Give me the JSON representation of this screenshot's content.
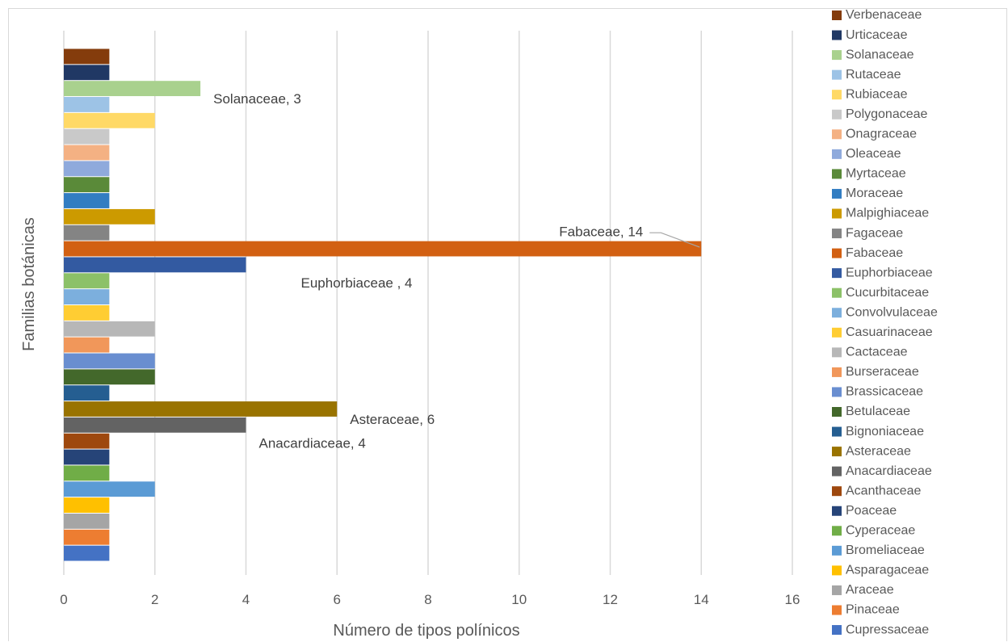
{
  "chart_data": {
    "type": "bar",
    "orientation": "horizontal",
    "xlabel": "Número de tipos polínicos",
    "ylabel": "Familias botánicas",
    "xlim": [
      0,
      16
    ],
    "xticks": [
      0,
      2,
      4,
      6,
      8,
      10,
      12,
      14,
      16
    ],
    "grid": "vertical",
    "legend_position": "right",
    "categories": [
      "Cupressaceae",
      "Pinaceae",
      "Araceae",
      "Asparagaceae",
      "Bromeliaceae",
      "Cyperaceae",
      "Poaceae",
      "Acanthaceae",
      "Anacardiaceae",
      "Asteraceae",
      "Bignoniaceae",
      "Betulaceae",
      "Brassicaceae",
      "Burseraceae",
      "Cactaceae",
      "Casuarinaceae",
      "Convolvulaceae",
      "Cucurbitaceae",
      "Euphorbiaceae",
      "Fabaceae",
      "Fagaceae",
      "Malpighiaceae",
      "Moraceae",
      "Myrtaceae",
      "Oleaceae",
      "Onagraceae",
      "Polygonaceae",
      "Rubiaceae",
      "Rutaceae",
      "Solanaceae",
      "Urticaceae",
      "Verbenaceae"
    ],
    "values": [
      1,
      1,
      1,
      1,
      2,
      1,
      1,
      1,
      4,
      6,
      1,
      2,
      2,
      1,
      2,
      1,
      1,
      1,
      4,
      14,
      1,
      2,
      1,
      1,
      1,
      1,
      1,
      2,
      1,
      3,
      1,
      1
    ],
    "colors": [
      "#4472c4",
      "#ed7d31",
      "#a5a5a5",
      "#ffc000",
      "#5b9bd5",
      "#70ad47",
      "#264478",
      "#9e480e",
      "#636363",
      "#997300",
      "#255e91",
      "#43682b",
      "#698ed0",
      "#f1975a",
      "#b7b7b7",
      "#ffcd33",
      "#7cafdd",
      "#8cc168",
      "#335aa1",
      "#d26012",
      "#848484",
      "#cc9a00",
      "#327dc2",
      "#5a8a39",
      "#8faadc",
      "#f4b183",
      "#c9c9c9",
      "#ffd966",
      "#9dc3e6",
      "#a9d18e",
      "#203864",
      "#843c0c"
    ],
    "annotations": [
      {
        "category": "Solanaceae",
        "text": "Solanaceae, 3"
      },
      {
        "category": "Fabaceae",
        "text": "Fabaceae, 14"
      },
      {
        "category": "Euphorbiaceae",
        "text": "Euphorbiaceae , 4"
      },
      {
        "category": "Asteraceae",
        "text": "Asteraceae, 6"
      },
      {
        "category": "Anacardiaceae",
        "text": "Anacardiaceae, 4"
      }
    ]
  }
}
